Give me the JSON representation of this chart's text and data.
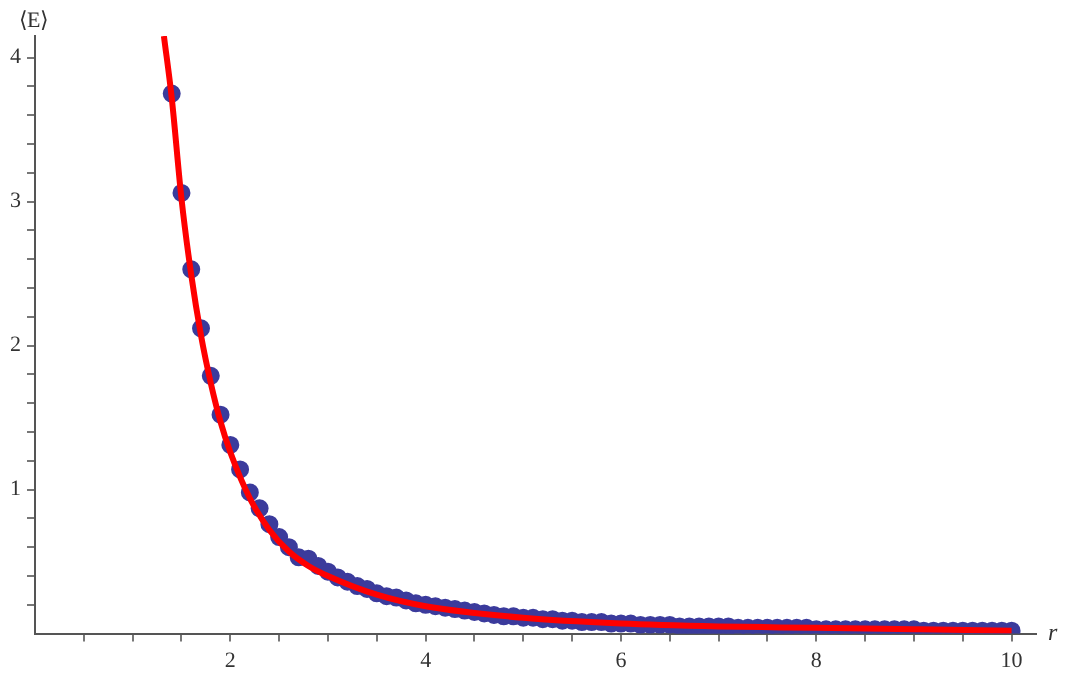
{
  "chart_data": {
    "type": "scatter",
    "xlabel": "r",
    "ylabel": "⟨E⟩",
    "xlim": [
      0,
      10.25
    ],
    "ylim": [
      0,
      4.15
    ],
    "xticks": [
      {
        "value": 0.5,
        "label": null
      },
      {
        "value": 1,
        "label": null
      },
      {
        "value": 1.5,
        "label": null
      },
      2,
      {
        "value": 2.5,
        "label": null
      },
      {
        "value": 3,
        "label": null
      },
      {
        "value": 3.5,
        "label": null
      },
      4,
      {
        "value": 4.5,
        "label": null
      },
      {
        "value": 5,
        "label": null
      },
      {
        "value": 5.5,
        "label": null
      },
      6,
      {
        "value": 6.5,
        "label": null
      },
      {
        "value": 7,
        "label": null
      },
      {
        "value": 7.5,
        "label": null
      },
      8,
      {
        "value": 8.5,
        "label": null
      },
      {
        "value": 9,
        "label": null
      },
      {
        "value": 9.5,
        "label": null
      },
      10
    ],
    "yticks": [
      {
        "value": 0.2,
        "label": null
      },
      {
        "value": 0.4,
        "label": null
      },
      {
        "value": 0.6,
        "label": null
      },
      {
        "value": 0.8,
        "label": null
      },
      1,
      {
        "value": 1.2,
        "label": null
      },
      {
        "value": 1.4,
        "label": null
      },
      {
        "value": 1.6,
        "label": null
      },
      {
        "value": 1.8,
        "label": null
      },
      2,
      {
        "value": 2.2,
        "label": null
      },
      {
        "value": 2.4,
        "label": null
      },
      {
        "value": 2.6,
        "label": null
      },
      {
        "value": 2.8,
        "label": null
      },
      3,
      {
        "value": 3.2,
        "label": null
      },
      {
        "value": 3.4,
        "label": null
      },
      {
        "value": 3.6,
        "label": null
      },
      {
        "value": 3.8,
        "label": null
      },
      4
    ],
    "grid": false,
    "legend": false,
    "marker": "circle",
    "series": [
      {
        "color": "#3b3b9c",
        "x": [
          1.4,
          1.5,
          1.6,
          1.7,
          1.8,
          1.9,
          2.0,
          2.1,
          2.2,
          2.3,
          2.4,
          2.5,
          2.6,
          2.7,
          2.8,
          2.9,
          3.0,
          3.1,
          3.2,
          3.3,
          3.4,
          3.5,
          3.6,
          3.7,
          3.8,
          3.9,
          4.0,
          4.1,
          4.2,
          4.3,
          4.4,
          4.5,
          4.6,
          4.7,
          4.8,
          4.9,
          5.0,
          5.1,
          5.2,
          5.3,
          5.4,
          5.5,
          5.6,
          5.7,
          5.8,
          5.9,
          6.0,
          6.1,
          6.2,
          6.3,
          6.4,
          6.5,
          6.6,
          6.7,
          6.8,
          6.9,
          7.0,
          7.1,
          7.2,
          7.3,
          7.4,
          7.5,
          7.6,
          7.7,
          7.8,
          7.9,
          8.0,
          8.1,
          8.2,
          8.3,
          8.4,
          8.5,
          8.6,
          8.7,
          8.8,
          8.9,
          9.0,
          9.1,
          9.2,
          9.3,
          9.4,
          9.5,
          9.6,
          9.7,
          9.8,
          9.9,
          10.0
        ],
        "values": [
          3.75,
          3.06,
          2.53,
          2.12,
          1.79,
          1.52,
          1.31,
          1.14,
          0.98,
          0.87,
          0.76,
          0.67,
          0.6,
          0.53,
          0.52,
          0.47,
          0.43,
          0.39,
          0.36,
          0.33,
          0.31,
          0.28,
          0.26,
          0.25,
          0.23,
          0.21,
          0.2,
          0.19,
          0.18,
          0.17,
          0.16,
          0.15,
          0.14,
          0.13,
          0.12,
          0.12,
          0.11,
          0.11,
          0.1,
          0.1,
          0.09,
          0.09,
          0.08,
          0.08,
          0.08,
          0.07,
          0.07,
          0.07,
          0.06,
          0.06,
          0.06,
          0.06,
          0.05,
          0.05,
          0.05,
          0.05,
          0.05,
          0.05,
          0.04,
          0.04,
          0.04,
          0.04,
          0.04,
          0.04,
          0.04,
          0.04,
          0.03,
          0.03,
          0.03,
          0.03,
          0.03,
          0.03,
          0.03,
          0.03,
          0.03,
          0.03,
          0.03,
          0.02,
          0.02,
          0.02,
          0.02,
          0.02,
          0.02,
          0.02,
          0.02,
          0.02,
          0.02
        ]
      },
      {
        "type": "line",
        "color": "#ff0000",
        "marker": "none",
        "line_style": "solid",
        "x": [
          1.32,
          1.4,
          1.5,
          1.6,
          1.7,
          1.8,
          1.9,
          2.0,
          2.2,
          2.4,
          2.6,
          2.8,
          3.0,
          3.5,
          4,
          5,
          6,
          7,
          8,
          9,
          10
        ],
        "values": [
          4.15,
          3.72,
          3.02,
          2.49,
          2.07,
          1.74,
          1.47,
          1.26,
          0.94,
          0.72,
          0.57,
          0.47,
          0.4,
          0.27,
          0.19,
          0.11,
          0.07,
          0.05,
          0.04,
          0.03,
          0.02
        ]
      }
    ]
  }
}
